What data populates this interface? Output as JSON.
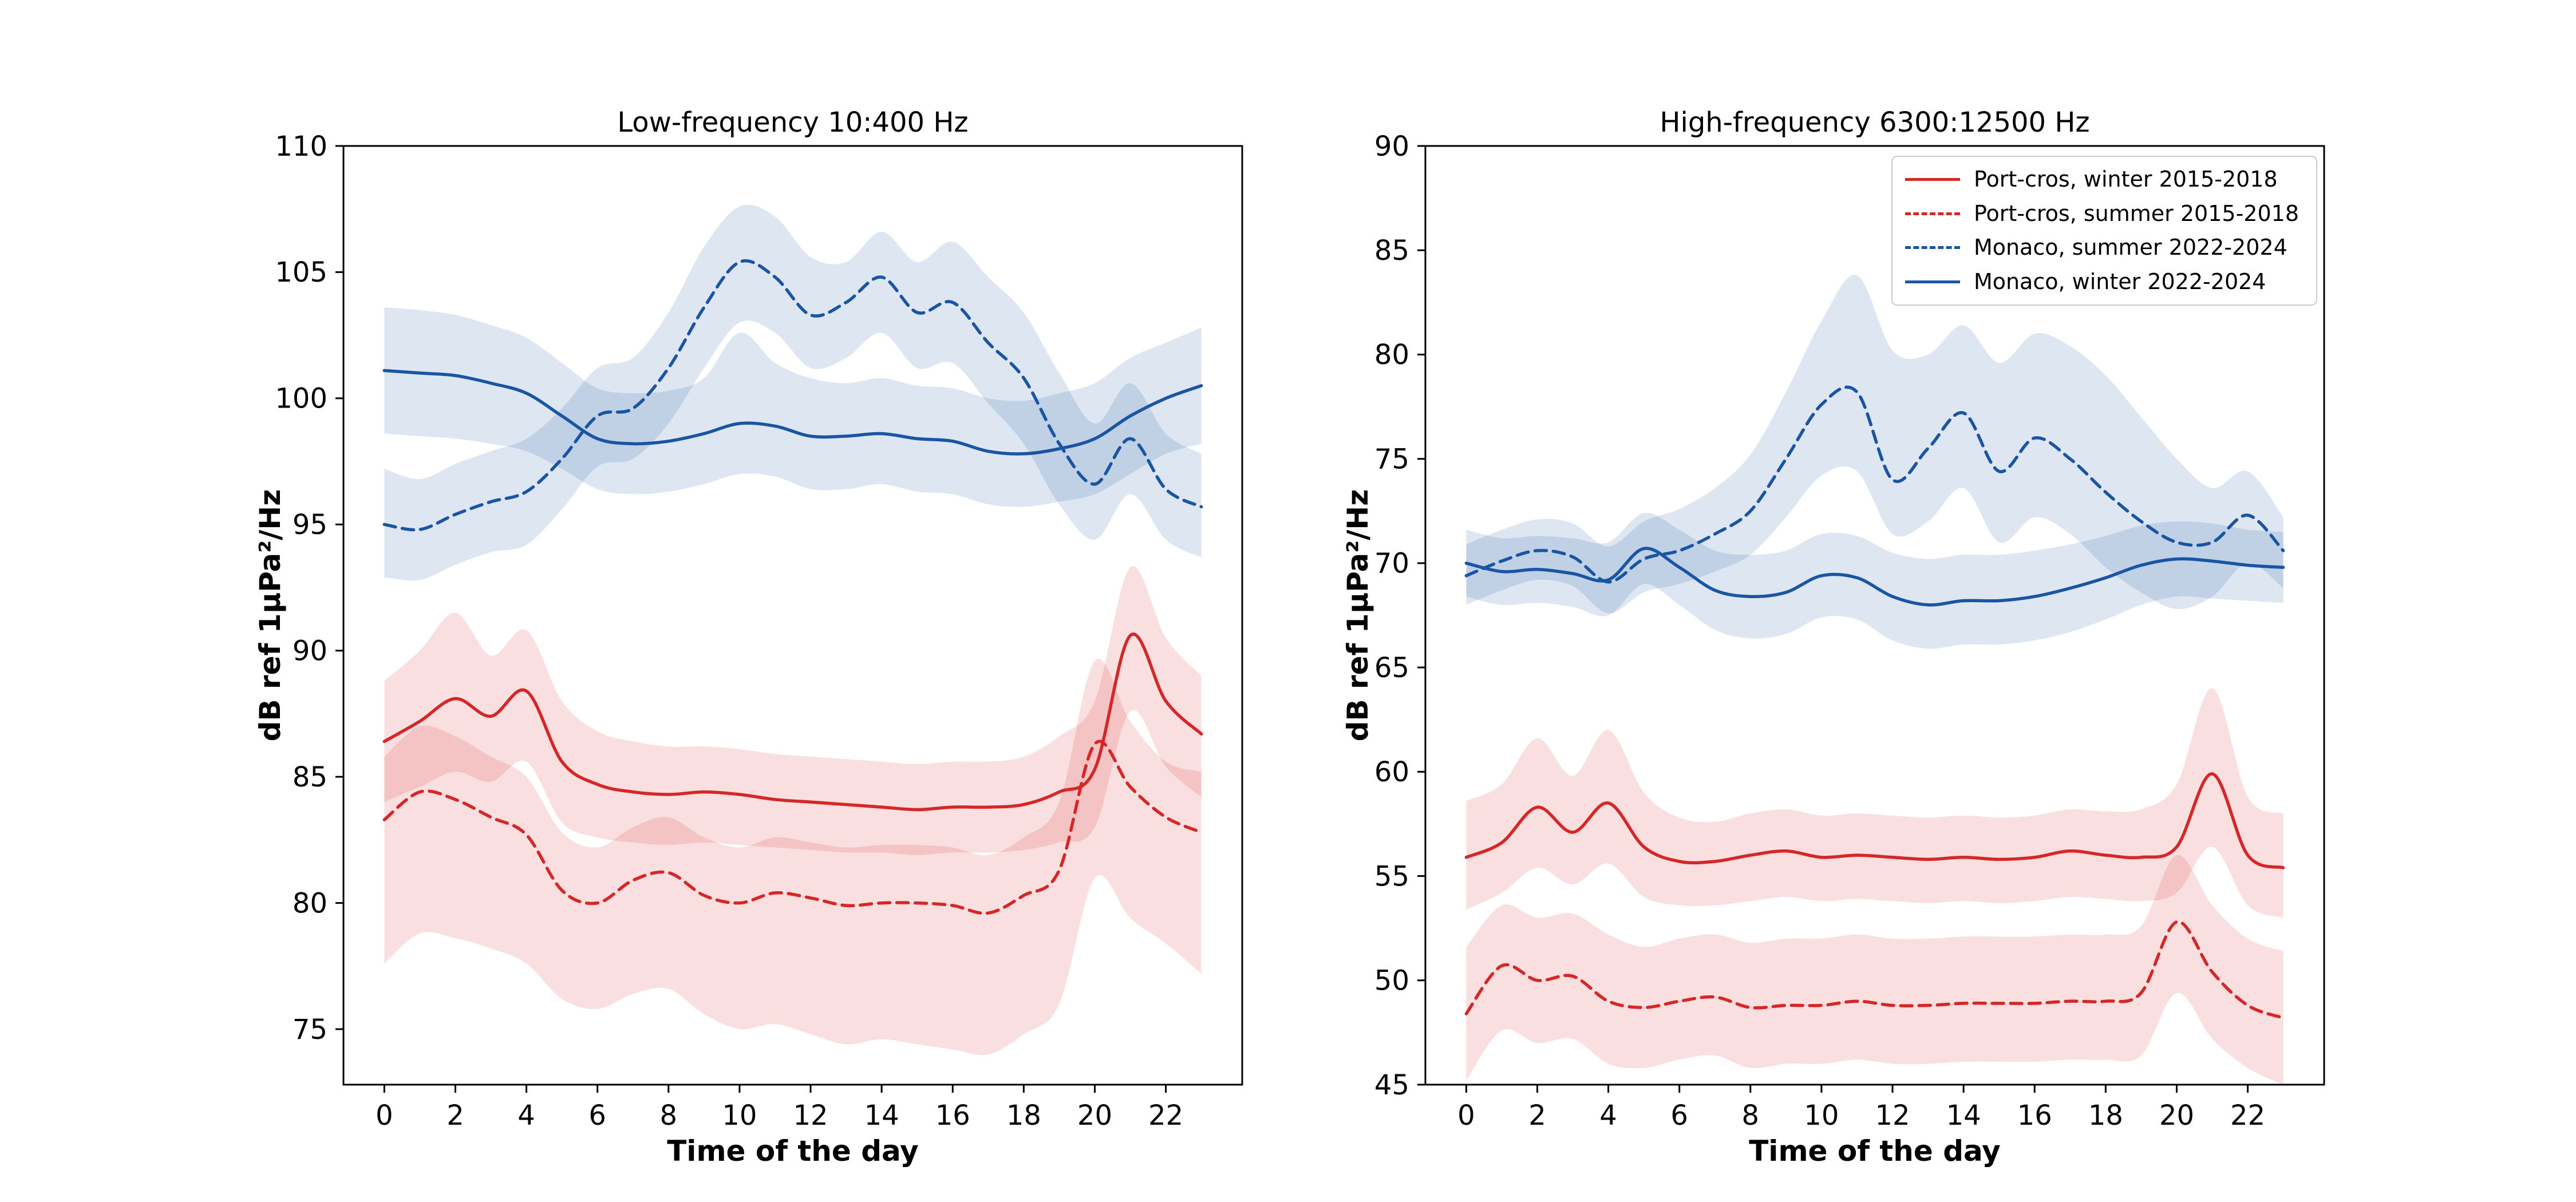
{
  "figure": {
    "background": "#ffffff"
  },
  "colors": {
    "red": "#d62728",
    "blue": "#1a55a3",
    "band_opacity": 0.15,
    "axis": "#000000",
    "legend_border": "#cccccc"
  },
  "chart_data": [
    {
      "id": "low-frequency",
      "type": "line",
      "title": "Low-frequency 10:400 Hz",
      "xlabel": "Time of the day",
      "ylabel": "dB ref 1µPa²/Hz",
      "grid": false,
      "legend": false,
      "xlim": [
        -1.15,
        24.15
      ],
      "ylim": [
        72.8,
        110
      ],
      "xticks": [
        0,
        2,
        4,
        6,
        8,
        10,
        12,
        14,
        16,
        18,
        20,
        22
      ],
      "yticks": [
        75,
        80,
        85,
        90,
        95,
        100,
        105,
        110
      ],
      "x": [
        0,
        1,
        2,
        3,
        4,
        5,
        6,
        7,
        8,
        9,
        10,
        11,
        12,
        13,
        14,
        15,
        16,
        17,
        18,
        19,
        20,
        21,
        22,
        23
      ],
      "series": [
        {
          "name": "Port-cros, winter 2015-2018",
          "slug": "port-cros-winter",
          "color_key": "red",
          "dash": "solid",
          "values": [
            86.4,
            87.2,
            88.1,
            87.4,
            88.4,
            85.6,
            84.7,
            84.4,
            84.3,
            84.4,
            84.3,
            84.1,
            84.0,
            83.9,
            83.8,
            83.7,
            83.8,
            83.8,
            83.9,
            84.4,
            85.3,
            90.6,
            88.0,
            86.7
          ],
          "band_low": [
            84.0,
            84.6,
            85.2,
            84.8,
            85.6,
            83.2,
            82.6,
            82.4,
            82.3,
            82.4,
            82.3,
            82.2,
            82.1,
            82.0,
            82.0,
            81.9,
            82.0,
            82.0,
            82.1,
            82.4,
            83.0,
            87.6,
            85.4,
            84.2
          ],
          "band_high": [
            88.8,
            90.0,
            91.5,
            89.8,
            90.8,
            88.0,
            86.8,
            86.4,
            86.2,
            86.2,
            86.1,
            85.9,
            85.8,
            85.7,
            85.6,
            85.5,
            85.6,
            85.6,
            85.8,
            86.6,
            88.0,
            93.3,
            90.5,
            89.0
          ]
        },
        {
          "name": "Port-cros, summer 2015-2018",
          "slug": "port-cros-summer",
          "color_key": "red",
          "dash": "dashed",
          "values": [
            83.3,
            84.4,
            84.1,
            83.4,
            82.7,
            80.5,
            80.0,
            80.9,
            81.2,
            80.3,
            80.0,
            80.4,
            80.2,
            79.9,
            80.0,
            80.0,
            79.9,
            79.6,
            80.3,
            81.3,
            86.3,
            84.6,
            83.4,
            82.8
          ],
          "band_low": [
            77.6,
            78.8,
            78.6,
            78.2,
            77.6,
            76.2,
            75.8,
            76.4,
            76.6,
            75.6,
            75.0,
            75.2,
            74.8,
            74.4,
            74.6,
            74.4,
            74.2,
            74.0,
            74.8,
            76.0,
            81.0,
            79.4,
            78.4,
            77.2
          ],
          "band_high": [
            85.8,
            87.0,
            86.6,
            85.8,
            85.0,
            82.8,
            82.2,
            83.0,
            83.4,
            82.6,
            82.2,
            82.6,
            82.4,
            82.2,
            82.3,
            82.3,
            82.2,
            81.9,
            82.6,
            84.0,
            89.6,
            87.2,
            85.6,
            85.2
          ]
        },
        {
          "name": "Monaco, summer 2022-2024",
          "slug": "monaco-summer",
          "color_key": "blue",
          "dash": "dashed",
          "values": [
            95.0,
            94.8,
            95.4,
            95.9,
            96.3,
            97.6,
            99.3,
            99.6,
            101.2,
            103.6,
            105.4,
            104.8,
            103.3,
            103.8,
            104.8,
            103.4,
            103.8,
            102.2,
            100.8,
            98.2,
            96.6,
            98.4,
            96.4,
            95.7
          ],
          "band_low": [
            92.9,
            92.8,
            93.4,
            93.9,
            94.2,
            95.6,
            97.3,
            97.6,
            99.0,
            101.2,
            103.0,
            102.6,
            101.2,
            101.6,
            102.6,
            101.2,
            101.4,
            99.8,
            98.2,
            95.8,
            94.4,
            96.2,
            94.4,
            93.7
          ],
          "band_high": [
            97.2,
            96.8,
            97.4,
            97.9,
            98.4,
            99.6,
            101.2,
            101.6,
            103.4,
            106.0,
            107.6,
            107.2,
            105.6,
            105.4,
            106.6,
            105.4,
            106.2,
            104.8,
            103.4,
            101.0,
            99.0,
            100.6,
            98.6,
            97.8
          ]
        },
        {
          "name": "Monaco, winter 2022-2024",
          "slug": "monaco-winter",
          "color_key": "blue",
          "dash": "solid",
          "values": [
            101.1,
            101.0,
            100.9,
            100.6,
            100.2,
            99.3,
            98.4,
            98.2,
            98.3,
            98.6,
            99.0,
            98.9,
            98.5,
            98.5,
            98.6,
            98.4,
            98.3,
            97.9,
            97.8,
            98.0,
            98.4,
            99.3,
            100.0,
            100.5
          ],
          "band_low": [
            98.6,
            98.5,
            98.4,
            98.2,
            97.9,
            97.2,
            96.4,
            96.2,
            96.3,
            96.6,
            97.0,
            96.9,
            96.4,
            96.4,
            96.6,
            96.3,
            96.2,
            95.8,
            95.7,
            95.9,
            96.2,
            97.0,
            97.8,
            98.2
          ],
          "band_high": [
            103.6,
            103.5,
            103.3,
            102.9,
            102.4,
            101.4,
            100.4,
            100.2,
            100.3,
            100.8,
            102.6,
            101.4,
            100.8,
            100.6,
            100.8,
            100.5,
            100.4,
            100.0,
            99.9,
            100.2,
            100.6,
            101.6,
            102.2,
            102.8
          ]
        }
      ]
    },
    {
      "id": "high-frequency",
      "type": "line",
      "title": "High-frequency 6300:12500 Hz",
      "xlabel": "Time of the day",
      "ylabel": "dB ref 1µPa²/Hz",
      "grid": false,
      "legend": true,
      "legend_location": "upper right",
      "xlim": [
        -1.15,
        24.15
      ],
      "ylim": [
        45,
        90
      ],
      "xticks": [
        0,
        2,
        4,
        6,
        8,
        10,
        12,
        14,
        16,
        18,
        20,
        22
      ],
      "yticks": [
        45,
        50,
        55,
        60,
        65,
        70,
        75,
        80,
        85,
        90
      ],
      "x": [
        0,
        1,
        2,
        3,
        4,
        5,
        6,
        7,
        8,
        9,
        10,
        11,
        12,
        13,
        14,
        15,
        16,
        17,
        18,
        19,
        20,
        21,
        22,
        23
      ],
      "series": [
        {
          "name": "Port-cros, winter 2015-2018",
          "slug": "port-cros-winter",
          "color_key": "red",
          "dash": "solid",
          "values": [
            55.9,
            56.6,
            58.3,
            57.1,
            58.5,
            56.4,
            55.7,
            55.7,
            56.0,
            56.2,
            55.9,
            56.0,
            55.9,
            55.8,
            55.9,
            55.8,
            55.9,
            56.2,
            56.0,
            55.9,
            56.4,
            59.9,
            56.0,
            55.4
          ],
          "band_low": [
            53.4,
            54.2,
            55.4,
            54.6,
            55.6,
            54.0,
            53.6,
            53.6,
            53.8,
            54.0,
            53.8,
            53.9,
            53.8,
            53.7,
            53.8,
            53.7,
            53.8,
            54.0,
            53.9,
            53.8,
            54.2,
            56.4,
            53.6,
            53.0
          ],
          "band_high": [
            58.6,
            59.4,
            61.6,
            59.8,
            62.0,
            59.0,
            57.8,
            57.6,
            58.0,
            58.2,
            57.9,
            58.0,
            57.9,
            57.8,
            57.9,
            57.8,
            57.9,
            58.2,
            58.1,
            58.2,
            59.4,
            64.0,
            58.8,
            58.0
          ]
        },
        {
          "name": "Port-cros, summer 2015-2018",
          "slug": "port-cros-summer",
          "color_key": "red",
          "dash": "dashed",
          "values": [
            48.4,
            50.7,
            50.0,
            50.2,
            49.0,
            48.7,
            49.0,
            49.2,
            48.7,
            48.8,
            48.8,
            49.0,
            48.8,
            48.8,
            48.9,
            48.9,
            48.9,
            49.0,
            49.0,
            49.4,
            52.8,
            50.4,
            48.8,
            48.2
          ],
          "band_low": [
            45.2,
            47.6,
            47.0,
            47.2,
            46.0,
            45.8,
            46.2,
            46.4,
            45.8,
            46.0,
            46.0,
            46.2,
            46.0,
            46.0,
            46.1,
            46.1,
            46.1,
            46.2,
            46.2,
            46.4,
            49.4,
            47.2,
            45.8,
            45.0
          ],
          "band_high": [
            51.6,
            53.6,
            53.0,
            53.2,
            52.2,
            51.6,
            52.0,
            52.2,
            51.8,
            52.0,
            52.0,
            52.2,
            52.0,
            52.0,
            52.1,
            52.1,
            52.1,
            52.2,
            52.2,
            52.6,
            56.0,
            53.6,
            52.0,
            51.4
          ]
        },
        {
          "name": "Monaco, summer 2022-2024",
          "slug": "monaco-summer",
          "color_key": "blue",
          "dash": "dashed",
          "values": [
            69.4,
            70.1,
            70.6,
            70.3,
            69.1,
            70.2,
            70.6,
            71.4,
            72.5,
            75.0,
            77.6,
            78.2,
            74.0,
            75.5,
            77.2,
            74.4,
            76.0,
            75.0,
            73.4,
            72.0,
            71.0,
            71.0,
            72.3,
            70.6
          ],
          "band_low": [
            68.0,
            68.7,
            69.2,
            68.9,
            67.6,
            68.6,
            69.0,
            69.6,
            70.4,
            72.2,
            74.2,
            74.4,
            71.4,
            72.0,
            73.6,
            71.0,
            72.2,
            71.4,
            69.8,
            68.6,
            67.8,
            68.4,
            70.0,
            68.8
          ],
          "band_high": [
            70.9,
            71.6,
            72.1,
            71.9,
            70.8,
            72.0,
            72.6,
            73.6,
            75.2,
            78.2,
            81.6,
            83.8,
            80.2,
            80.0,
            81.4,
            79.6,
            81.0,
            80.4,
            79.0,
            77.0,
            75.0,
            73.6,
            74.4,
            72.2
          ]
        },
        {
          "name": "Monaco, winter 2022-2024",
          "slug": "monaco-winter",
          "color_key": "blue",
          "dash": "solid",
          "values": [
            70.0,
            69.6,
            69.7,
            69.5,
            69.2,
            70.7,
            69.8,
            68.7,
            68.4,
            68.6,
            69.4,
            69.3,
            68.4,
            68.0,
            68.2,
            68.2,
            68.4,
            68.8,
            69.3,
            69.9,
            70.2,
            70.1,
            69.9,
            69.8
          ],
          "band_low": [
            68.4,
            68.0,
            68.1,
            67.9,
            67.5,
            69.0,
            68.0,
            66.8,
            66.4,
            66.6,
            67.4,
            67.3,
            66.3,
            65.9,
            66.1,
            66.1,
            66.3,
            66.7,
            67.3,
            68.0,
            68.4,
            68.3,
            68.2,
            68.1
          ],
          "band_high": [
            71.6,
            71.2,
            71.3,
            71.2,
            71.0,
            72.4,
            71.6,
            70.6,
            70.4,
            70.6,
            71.4,
            71.3,
            70.5,
            70.2,
            70.4,
            70.4,
            70.6,
            70.9,
            71.3,
            71.8,
            72.0,
            71.9,
            71.6,
            71.5
          ]
        }
      ]
    }
  ]
}
